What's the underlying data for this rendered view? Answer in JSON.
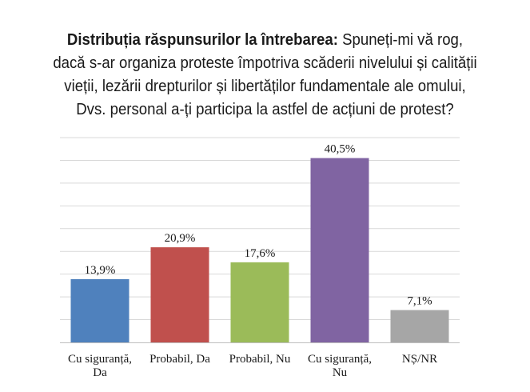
{
  "title": {
    "bold": "Distribuția răspunsurilor la întrebarea:",
    "line1_rest": " Spuneți-mi vă rog,",
    "line2": "dacă s-ar organiza proteste împotriva scăderii nivelului și calității",
    "line3": "vieții, lezării drepturilor și libertăților fundamentale ale omului,",
    "line4": "Dvs. personal a-ți participa la astfel de acțiuni de protest?"
  },
  "chart_data": {
    "type": "bar",
    "categories": [
      [
        "Cu siguranță,",
        "Da"
      ],
      [
        "Probabil, Da"
      ],
      [
        "Probabil, Nu"
      ],
      [
        "Cu siguranță,",
        "Nu"
      ],
      [
        "NȘ/NR"
      ]
    ],
    "values": [
      13.9,
      20.9,
      17.6,
      40.5,
      7.1
    ],
    "value_labels": [
      "13,9%",
      "20,9%",
      "17,6%",
      "40,5%",
      "7,1%"
    ],
    "colors": [
      "#4f81bd",
      "#c0504d",
      "#9bbb59",
      "#8064a2",
      "#a6a6a6"
    ],
    "ylim": [
      0,
      45
    ],
    "grid": true
  }
}
